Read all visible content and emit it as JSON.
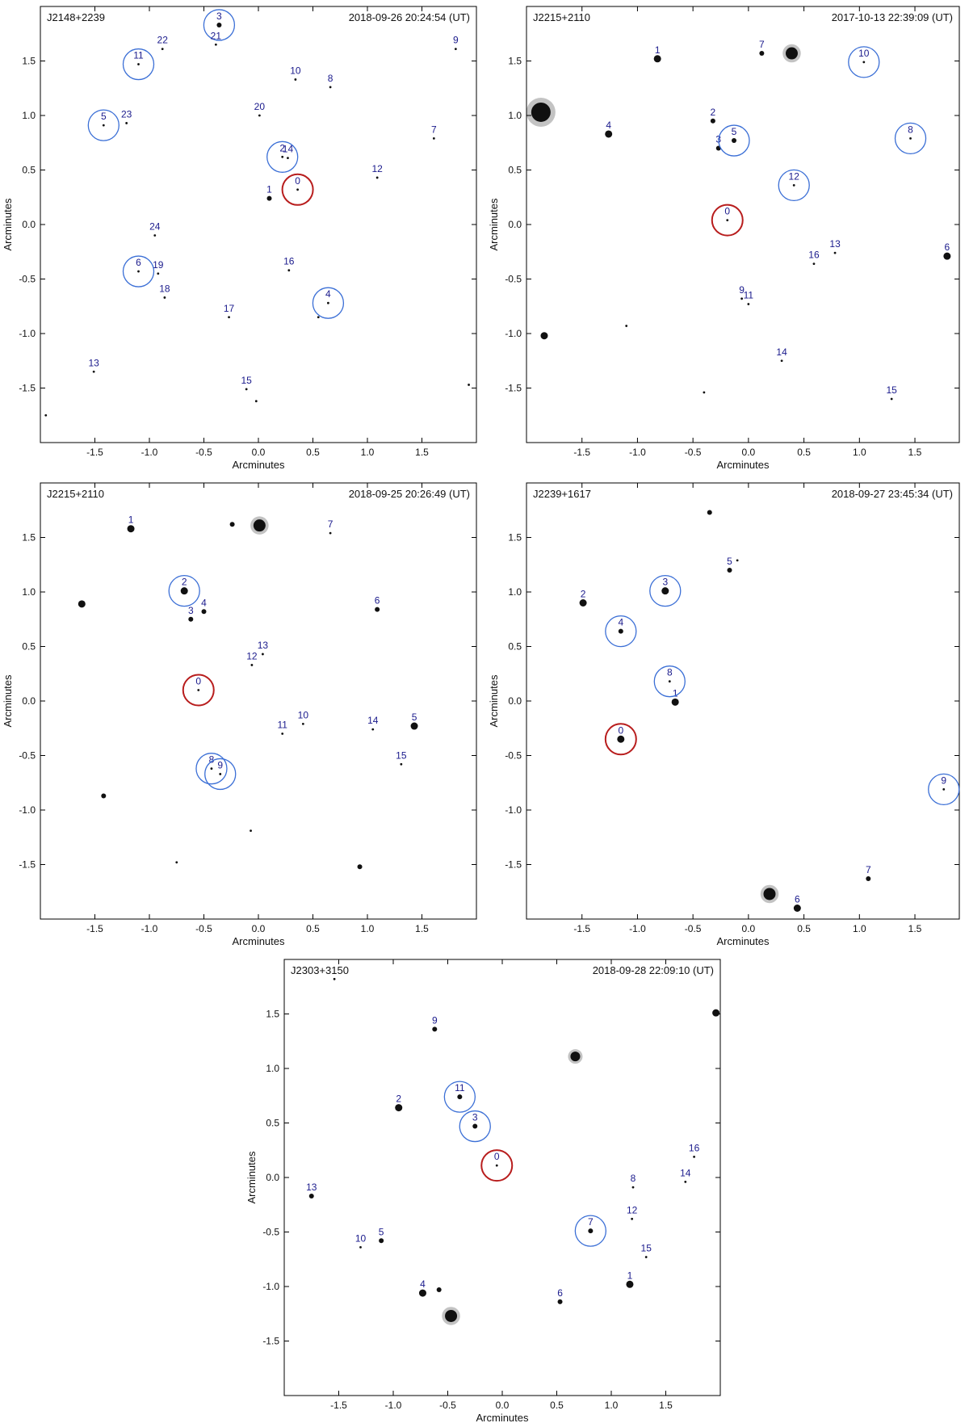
{
  "chart_data": [
    {
      "type": "scatter",
      "title": "J2148+2239",
      "timestamp": "2018-09-26 20:24:54 (UT)",
      "xlabel": "Arcminutes",
      "ylabel": "Arcminutes",
      "xlim": [
        -2.0,
        2.0
      ],
      "ylim": [
        -2.0,
        2.0
      ],
      "xticks": [
        "-1.5",
        "-1.0",
        "-0.5",
        "0.0",
        "0.5",
        "1.0",
        "1.5"
      ],
      "yticks": [
        "1.5",
        "1.0",
        "0.5",
        "0.0",
        "-0.5",
        "-1.0",
        "-1.5"
      ],
      "stars": [
        {
          "label": "0",
          "x": 0.36,
          "y": 0.32,
          "size": 1,
          "circle": "red"
        },
        {
          "label": "1",
          "x": 0.1,
          "y": 0.24,
          "size": 2
        },
        {
          "label": "2",
          "x": 0.22,
          "y": 0.62,
          "size": 1,
          "circle": "blue"
        },
        {
          "label": "14",
          "x": 0.27,
          "y": 0.61,
          "size": 1
        },
        {
          "label": "3",
          "x": -0.36,
          "y": 1.83,
          "size": 2,
          "circle": "blue"
        },
        {
          "label": "4",
          "x": 0.64,
          "y": -0.72,
          "size": 1,
          "circle": "blue"
        },
        {
          "label": "5",
          "x": -1.42,
          "y": 0.91,
          "size": 1,
          "circle": "blue"
        },
        {
          "label": "6",
          "x": -1.1,
          "y": -0.43,
          "size": 1,
          "circle": "blue"
        },
        {
          "label": "7",
          "x": 1.61,
          "y": 0.79,
          "size": 1
        },
        {
          "label": "8",
          "x": 0.66,
          "y": 1.26,
          "size": 1
        },
        {
          "label": "9",
          "x": 1.81,
          "y": 1.61,
          "size": 1
        },
        {
          "label": "10",
          "x": 0.34,
          "y": 1.33,
          "size": 1
        },
        {
          "label": "11",
          "x": -1.1,
          "y": 1.47,
          "size": 1,
          "circle": "blue"
        },
        {
          "label": "12",
          "x": 1.09,
          "y": 0.43,
          "size": 1
        },
        {
          "label": "13",
          "x": -1.51,
          "y": -1.35,
          "size": 1
        },
        {
          "label": "15",
          "x": -0.11,
          "y": -1.51,
          "size": 1
        },
        {
          "label": "16",
          "x": 0.28,
          "y": -0.42,
          "size": 1
        },
        {
          "label": "17",
          "x": -0.27,
          "y": -0.85,
          "size": 1
        },
        {
          "label": "18",
          "x": -0.86,
          "y": -0.67,
          "size": 1
        },
        {
          "label": "19",
          "x": -0.92,
          "y": -0.45,
          "size": 1
        },
        {
          "label": "20",
          "x": 0.01,
          "y": 1.0,
          "size": 1
        },
        {
          "label": "21",
          "x": -0.39,
          "y": 1.65,
          "size": 1
        },
        {
          "label": "22",
          "x": -0.88,
          "y": 1.61,
          "size": 1
        },
        {
          "label": "23",
          "x": -1.21,
          "y": 0.93,
          "size": 1
        },
        {
          "label": "24",
          "x": -0.95,
          "y": -0.1,
          "size": 1
        },
        {
          "label": "",
          "x": -1.95,
          "y": -1.75,
          "size": 1
        },
        {
          "label": "",
          "x": 1.93,
          "y": -1.47,
          "size": 1
        },
        {
          "label": "",
          "x": 0.55,
          "y": -0.85,
          "size": 1
        },
        {
          "label": "",
          "x": -0.02,
          "y": -1.62,
          "size": 1
        }
      ]
    },
    {
      "type": "scatter",
      "title": "J2215+2110",
      "timestamp": "2017-10-13 22:39:09 (UT)",
      "xlabel": "Arcminutes",
      "ylabel": "Arcminutes",
      "xlim": [
        -2.0,
        1.9
      ],
      "ylim": [
        -2.0,
        2.0
      ],
      "xticks": [
        "-1.5",
        "-1.0",
        "-0.5",
        "0.0",
        "0.5",
        "1.0",
        "1.5"
      ],
      "yticks": [
        "1.5",
        "1.0",
        "0.5",
        "0.0",
        "-0.5",
        "-1.0",
        "-1.5"
      ],
      "stars": [
        {
          "label": "0",
          "x": -0.19,
          "y": 0.04,
          "size": 1,
          "circle": "red"
        },
        {
          "label": "1",
          "x": -0.82,
          "y": 1.52,
          "size": 3
        },
        {
          "label": "2",
          "x": -0.32,
          "y": 0.95,
          "size": 2
        },
        {
          "label": "3",
          "x": -0.27,
          "y": 0.7,
          "size": 2
        },
        {
          "label": "4",
          "x": -1.26,
          "y": 0.83,
          "size": 3
        },
        {
          "label": "5",
          "x": -0.13,
          "y": 0.77,
          "size": 2,
          "circle": "blue"
        },
        {
          "label": "6",
          "x": 1.79,
          "y": -0.29,
          "size": 3
        },
        {
          "label": "7",
          "x": 0.12,
          "y": 1.57,
          "size": 2
        },
        {
          "label": "8",
          "x": 1.46,
          "y": 0.79,
          "size": 1,
          "circle": "blue"
        },
        {
          "label": "9",
          "x": -0.06,
          "y": -0.68,
          "size": 1
        },
        {
          "label": "10",
          "x": 1.04,
          "y": 1.49,
          "size": 1,
          "circle": "blue"
        },
        {
          "label": "11",
          "x": 0.0,
          "y": -0.73,
          "size": 1
        },
        {
          "label": "12",
          "x": 0.41,
          "y": 0.36,
          "size": 1,
          "circle": "blue"
        },
        {
          "label": "13",
          "x": 0.78,
          "y": -0.26,
          "size": 1
        },
        {
          "label": "14",
          "x": 0.3,
          "y": -1.25,
          "size": 1
        },
        {
          "label": "15",
          "x": 1.29,
          "y": -1.6,
          "size": 1
        },
        {
          "label": "16",
          "x": 0.59,
          "y": -0.36,
          "size": 1
        },
        {
          "label": "",
          "x": -1.87,
          "y": 1.03,
          "size": 8
        },
        {
          "label": "",
          "x": 0.39,
          "y": 1.57,
          "size": 5
        },
        {
          "label": "",
          "x": -1.84,
          "y": -1.02,
          "size": 3
        },
        {
          "label": "",
          "x": -0.4,
          "y": -1.54,
          "size": 1
        },
        {
          "label": "",
          "x": -1.1,
          "y": -0.93,
          "size": 1
        }
      ]
    },
    {
      "type": "scatter",
      "title": "J2215+2110",
      "timestamp": "2018-09-25 20:26:49 (UT)",
      "xlabel": "Arcminutes",
      "ylabel": "Arcminutes",
      "xlim": [
        -2.0,
        2.0
      ],
      "ylim": [
        -2.0,
        2.0
      ],
      "xticks": [
        "-1.5",
        "-1.0",
        "-0.5",
        "0.0",
        "0.5",
        "1.0",
        "1.5"
      ],
      "yticks": [
        "1.5",
        "1.0",
        "0.5",
        "0.0",
        "-0.5",
        "-1.0",
        "-1.5"
      ],
      "stars": [
        {
          "label": "0",
          "x": -0.55,
          "y": 0.1,
          "size": 1,
          "circle": "red"
        },
        {
          "label": "1",
          "x": -1.17,
          "y": 1.58,
          "size": 3
        },
        {
          "label": "2",
          "x": -0.68,
          "y": 1.01,
          "size": 3,
          "circle": "blue"
        },
        {
          "label": "3",
          "x": -0.62,
          "y": 0.75,
          "size": 2
        },
        {
          "label": "4",
          "x": -0.5,
          "y": 0.82,
          "size": 2
        },
        {
          "label": "5",
          "x": 1.43,
          "y": -0.23,
          "size": 3
        },
        {
          "label": "6",
          "x": 1.09,
          "y": 0.84,
          "size": 2
        },
        {
          "label": "7",
          "x": 0.66,
          "y": 1.54,
          "size": 1
        },
        {
          "label": "8",
          "x": -0.43,
          "y": -0.62,
          "size": 1,
          "circle": "blue"
        },
        {
          "label": "9",
          "x": -0.35,
          "y": -0.67,
          "size": 1,
          "circle": "blue"
        },
        {
          "label": "10",
          "x": 0.41,
          "y": -0.21,
          "size": 1
        },
        {
          "label": "11",
          "x": 0.22,
          "y": -0.3,
          "size": 1
        },
        {
          "label": "12",
          "x": -0.06,
          "y": 0.33,
          "size": 1
        },
        {
          "label": "13",
          "x": 0.04,
          "y": 0.43,
          "size": 1
        },
        {
          "label": "14",
          "x": 1.05,
          "y": -0.26,
          "size": 1
        },
        {
          "label": "15",
          "x": 1.31,
          "y": -0.58,
          "size": 1
        },
        {
          "label": "",
          "x": 0.01,
          "y": 1.61,
          "size": 5
        },
        {
          "label": "",
          "x": -0.24,
          "y": 1.62,
          "size": 2
        },
        {
          "label": "",
          "x": -1.62,
          "y": 0.89,
          "size": 3
        },
        {
          "label": "",
          "x": -1.42,
          "y": -0.87,
          "size": 2
        },
        {
          "label": "",
          "x": -0.07,
          "y": -1.19,
          "size": 1
        },
        {
          "label": "",
          "x": 0.93,
          "y": -1.52,
          "size": 2
        },
        {
          "label": "",
          "x": -0.75,
          "y": -1.48,
          "size": 1
        }
      ]
    },
    {
      "type": "scatter",
      "title": "J2239+1617",
      "timestamp": "2018-09-27 23:45:34 (UT)",
      "xlabel": "Arcminutes",
      "ylabel": "Arcminutes",
      "xlim": [
        -2.0,
        1.9
      ],
      "ylim": [
        -2.0,
        2.0
      ],
      "xticks": [
        "-1.5",
        "-1.0",
        "-0.5",
        "0.0",
        "0.5",
        "1.0",
        "1.5"
      ],
      "yticks": [
        "1.5",
        "1.0",
        "0.5",
        "0.0",
        "-0.5",
        "-1.0",
        "-1.5"
      ],
      "stars": [
        {
          "label": "0",
          "x": -1.15,
          "y": -0.35,
          "size": 3,
          "circle": "red"
        },
        {
          "label": "1",
          "x": -0.66,
          "y": -0.01,
          "size": 3
        },
        {
          "label": "2",
          "x": -1.49,
          "y": 0.9,
          "size": 3
        },
        {
          "label": "3",
          "x": -0.75,
          "y": 1.01,
          "size": 3,
          "circle": "blue"
        },
        {
          "label": "4",
          "x": -1.15,
          "y": 0.64,
          "size": 2,
          "circle": "blue"
        },
        {
          "label": "5",
          "x": -0.17,
          "y": 1.2,
          "size": 2
        },
        {
          "label": "6",
          "x": 0.44,
          "y": -1.9,
          "size": 3
        },
        {
          "label": "7",
          "x": 1.08,
          "y": -1.63,
          "size": 2
        },
        {
          "label": "8",
          "x": -0.71,
          "y": 0.18,
          "size": 1,
          "circle": "blue"
        },
        {
          "label": "9",
          "x": 1.76,
          "y": -0.81,
          "size": 1,
          "circle": "blue"
        },
        {
          "label": "",
          "x": -0.35,
          "y": 1.73,
          "size": 2
        },
        {
          "label": "",
          "x": -0.1,
          "y": 1.29,
          "size": 1
        },
        {
          "label": "",
          "x": 0.19,
          "y": -1.77,
          "size": 5
        }
      ]
    },
    {
      "type": "scatter",
      "title": "J2303+3150",
      "timestamp": "2018-09-28 22:09:10 (UT)",
      "xlabel": "Arcminutes",
      "ylabel": "Arcminutes",
      "xlim": [
        -2.0,
        2.0
      ],
      "ylim": [
        -2.0,
        2.0
      ],
      "xticks": [
        "-1.5",
        "-1.0",
        "-0.5",
        "0.0",
        "0.5",
        "1.0",
        "1.5"
      ],
      "yticks": [
        "1.5",
        "1.0",
        "0.5",
        "0.0",
        "-0.5",
        "-1.0",
        "-1.5"
      ],
      "stars": [
        {
          "label": "0",
          "x": -0.05,
          "y": 0.11,
          "size": 1,
          "circle": "red"
        },
        {
          "label": "1",
          "x": 1.17,
          "y": -0.98,
          "size": 3
        },
        {
          "label": "2",
          "x": -0.95,
          "y": 0.64,
          "size": 3
        },
        {
          "label": "3",
          "x": -0.25,
          "y": 0.47,
          "size": 2,
          "circle": "blue"
        },
        {
          "label": "4",
          "x": -0.73,
          "y": -1.06,
          "size": 3
        },
        {
          "label": "5",
          "x": -1.11,
          "y": -0.58,
          "size": 2
        },
        {
          "label": "6",
          "x": 0.53,
          "y": -1.14,
          "size": 2
        },
        {
          "label": "7",
          "x": 0.81,
          "y": -0.49,
          "size": 2,
          "circle": "blue"
        },
        {
          "label": "8",
          "x": 1.2,
          "y": -0.09,
          "size": 1
        },
        {
          "label": "9",
          "x": -0.62,
          "y": 1.36,
          "size": 2
        },
        {
          "label": "10",
          "x": -1.3,
          "y": -0.64,
          "size": 1
        },
        {
          "label": "11",
          "x": -0.39,
          "y": 0.74,
          "size": 2,
          "circle": "blue"
        },
        {
          "label": "12",
          "x": 1.19,
          "y": -0.38,
          "size": 1
        },
        {
          "label": "13",
          "x": -1.75,
          "y": -0.17,
          "size": 2
        },
        {
          "label": "14",
          "x": 1.68,
          "y": -0.04,
          "size": 1
        },
        {
          "label": "15",
          "x": 1.32,
          "y": -0.73,
          "size": 1
        },
        {
          "label": "16",
          "x": 1.76,
          "y": 0.19,
          "size": 1
        },
        {
          "label": "",
          "x": 0.67,
          "y": 1.11,
          "size": 4
        },
        {
          "label": "",
          "x": -0.47,
          "y": -1.27,
          "size": 5
        },
        {
          "label": "",
          "x": 1.96,
          "y": 1.51,
          "size": 3
        },
        {
          "label": "",
          "x": -1.54,
          "y": 1.82,
          "size": 1
        },
        {
          "label": "",
          "x": -0.58,
          "y": -1.03,
          "size": 2
        }
      ]
    }
  ]
}
